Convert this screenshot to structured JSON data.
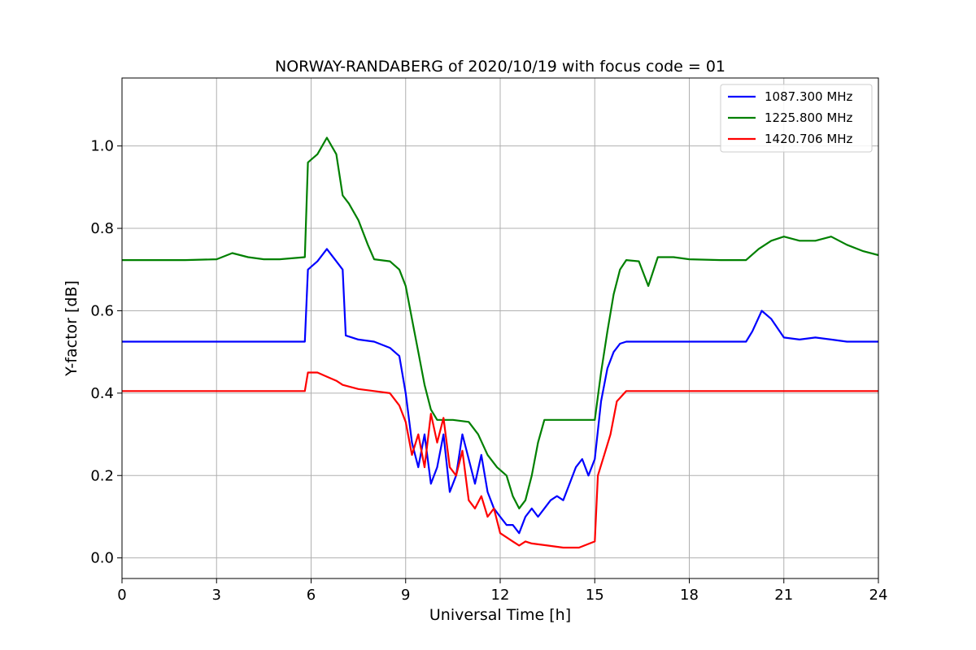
{
  "chart_data": {
    "type": "line",
    "title": "NORWAY-RANDABERG of 2020/10/19 with focus code = 01",
    "xlabel": "Universal Time [h]",
    "ylabel": "Y-factor [dB]",
    "xlim": [
      0,
      24
    ],
    "ylim": [
      -0.05,
      1.165
    ],
    "xticks": [
      0,
      3,
      6,
      9,
      12,
      15,
      18,
      21,
      24
    ],
    "xtick_labels": [
      "0",
      "3",
      "6",
      "9",
      "12",
      "15",
      "18",
      "21",
      "24"
    ],
    "yticks": [
      0.0,
      0.2,
      0.4,
      0.6,
      0.8,
      1.0
    ],
    "ytick_labels": [
      "0.0",
      "0.2",
      "0.4",
      "0.6",
      "0.8",
      "1.0"
    ],
    "grid": true,
    "legend_position": "top-right",
    "series": [
      {
        "name": "1087.300 MHz",
        "color": "#0000ff",
        "points": [
          [
            0.0,
            0.525
          ],
          [
            1.0,
            0.525
          ],
          [
            2.0,
            0.525
          ],
          [
            3.0,
            0.525
          ],
          [
            4.0,
            0.525
          ],
          [
            5.0,
            0.525
          ],
          [
            5.8,
            0.525
          ],
          [
            5.9,
            0.7
          ],
          [
            6.2,
            0.72
          ],
          [
            6.5,
            0.75
          ],
          [
            6.8,
            0.72
          ],
          [
            7.0,
            0.7
          ],
          [
            7.1,
            0.54
          ],
          [
            7.5,
            0.53
          ],
          [
            8.0,
            0.525
          ],
          [
            8.5,
            0.51
          ],
          [
            8.8,
            0.49
          ],
          [
            9.0,
            0.4
          ],
          [
            9.2,
            0.28
          ],
          [
            9.4,
            0.22
          ],
          [
            9.6,
            0.3
          ],
          [
            9.8,
            0.18
          ],
          [
            10.0,
            0.22
          ],
          [
            10.2,
            0.3
          ],
          [
            10.4,
            0.16
          ],
          [
            10.6,
            0.2
          ],
          [
            10.8,
            0.3
          ],
          [
            11.0,
            0.24
          ],
          [
            11.2,
            0.18
          ],
          [
            11.4,
            0.25
          ],
          [
            11.6,
            0.16
          ],
          [
            11.8,
            0.12
          ],
          [
            12.0,
            0.1
          ],
          [
            12.2,
            0.08
          ],
          [
            12.4,
            0.08
          ],
          [
            12.6,
            0.06
          ],
          [
            12.8,
            0.1
          ],
          [
            13.0,
            0.12
          ],
          [
            13.2,
            0.1
          ],
          [
            13.4,
            0.12
          ],
          [
            13.6,
            0.14
          ],
          [
            13.8,
            0.15
          ],
          [
            14.0,
            0.14
          ],
          [
            14.2,
            0.18
          ],
          [
            14.4,
            0.22
          ],
          [
            14.6,
            0.24
          ],
          [
            14.8,
            0.2
          ],
          [
            15.0,
            0.24
          ],
          [
            15.2,
            0.38
          ],
          [
            15.4,
            0.46
          ],
          [
            15.6,
            0.5
          ],
          [
            15.8,
            0.52
          ],
          [
            16.0,
            0.525
          ],
          [
            17.0,
            0.525
          ],
          [
            18.0,
            0.525
          ],
          [
            19.0,
            0.525
          ],
          [
            19.8,
            0.525
          ],
          [
            20.0,
            0.55
          ],
          [
            20.3,
            0.6
          ],
          [
            20.6,
            0.58
          ],
          [
            21.0,
            0.535
          ],
          [
            21.5,
            0.53
          ],
          [
            22.0,
            0.535
          ],
          [
            22.5,
            0.53
          ],
          [
            23.0,
            0.525
          ],
          [
            24.0,
            0.525
          ]
        ]
      },
      {
        "name": "1225.800 MHz",
        "color": "#008000",
        "points": [
          [
            0.0,
            0.723
          ],
          [
            1.0,
            0.723
          ],
          [
            2.0,
            0.723
          ],
          [
            3.0,
            0.725
          ],
          [
            3.5,
            0.74
          ],
          [
            4.0,
            0.73
          ],
          [
            4.5,
            0.725
          ],
          [
            5.0,
            0.725
          ],
          [
            5.8,
            0.73
          ],
          [
            5.9,
            0.96
          ],
          [
            6.2,
            0.98
          ],
          [
            6.5,
            1.02
          ],
          [
            6.8,
            0.98
          ],
          [
            7.0,
            0.88
          ],
          [
            7.2,
            0.86
          ],
          [
            7.5,
            0.82
          ],
          [
            7.8,
            0.76
          ],
          [
            8.0,
            0.725
          ],
          [
            8.5,
            0.72
          ],
          [
            8.8,
            0.7
          ],
          [
            9.0,
            0.66
          ],
          [
            9.2,
            0.58
          ],
          [
            9.4,
            0.5
          ],
          [
            9.6,
            0.42
          ],
          [
            9.8,
            0.36
          ],
          [
            10.0,
            0.335
          ],
          [
            10.5,
            0.335
          ],
          [
            11.0,
            0.33
          ],
          [
            11.3,
            0.3
          ],
          [
            11.6,
            0.25
          ],
          [
            11.9,
            0.22
          ],
          [
            12.2,
            0.2
          ],
          [
            12.4,
            0.15
          ],
          [
            12.6,
            0.12
          ],
          [
            12.8,
            0.14
          ],
          [
            13.0,
            0.2
          ],
          [
            13.2,
            0.28
          ],
          [
            13.4,
            0.335
          ],
          [
            14.0,
            0.335
          ],
          [
            14.5,
            0.335
          ],
          [
            15.0,
            0.335
          ],
          [
            15.2,
            0.45
          ],
          [
            15.4,
            0.55
          ],
          [
            15.6,
            0.64
          ],
          [
            15.8,
            0.7
          ],
          [
            16.0,
            0.723
          ],
          [
            16.4,
            0.72
          ],
          [
            16.7,
            0.66
          ],
          [
            17.0,
            0.73
          ],
          [
            17.5,
            0.73
          ],
          [
            18.0,
            0.725
          ],
          [
            19.0,
            0.723
          ],
          [
            19.8,
            0.723
          ],
          [
            20.2,
            0.75
          ],
          [
            20.6,
            0.77
          ],
          [
            21.0,
            0.78
          ],
          [
            21.5,
            0.77
          ],
          [
            22.0,
            0.77
          ],
          [
            22.5,
            0.78
          ],
          [
            23.0,
            0.76
          ],
          [
            23.5,
            0.745
          ],
          [
            24.0,
            0.735
          ]
        ]
      },
      {
        "name": "1420.706 MHz",
        "color": "#ff0000",
        "points": [
          [
            0.0,
            0.405
          ],
          [
            1.0,
            0.405
          ],
          [
            2.0,
            0.405
          ],
          [
            3.0,
            0.405
          ],
          [
            4.0,
            0.405
          ],
          [
            5.0,
            0.405
          ],
          [
            5.8,
            0.405
          ],
          [
            5.9,
            0.45
          ],
          [
            6.2,
            0.45
          ],
          [
            6.5,
            0.44
          ],
          [
            6.8,
            0.43
          ],
          [
            7.0,
            0.42
          ],
          [
            7.5,
            0.41
          ],
          [
            8.0,
            0.405
          ],
          [
            8.5,
            0.4
          ],
          [
            8.8,
            0.37
          ],
          [
            9.0,
            0.33
          ],
          [
            9.2,
            0.25
          ],
          [
            9.4,
            0.3
          ],
          [
            9.6,
            0.22
          ],
          [
            9.8,
            0.35
          ],
          [
            10.0,
            0.28
          ],
          [
            10.2,
            0.34
          ],
          [
            10.4,
            0.22
          ],
          [
            10.6,
            0.2
          ],
          [
            10.8,
            0.26
          ],
          [
            11.0,
            0.14
          ],
          [
            11.2,
            0.12
          ],
          [
            11.4,
            0.15
          ],
          [
            11.6,
            0.1
          ],
          [
            11.8,
            0.12
          ],
          [
            12.0,
            0.06
          ],
          [
            12.2,
            0.05
          ],
          [
            12.4,
            0.04
          ],
          [
            12.6,
            0.03
          ],
          [
            12.8,
            0.04
          ],
          [
            13.0,
            0.035
          ],
          [
            13.5,
            0.03
          ],
          [
            14.0,
            0.025
          ],
          [
            14.5,
            0.025
          ],
          [
            15.0,
            0.04
          ],
          [
            15.1,
            0.2
          ],
          [
            15.3,
            0.25
          ],
          [
            15.5,
            0.3
          ],
          [
            15.7,
            0.38
          ],
          [
            16.0,
            0.405
          ],
          [
            17.0,
            0.405
          ],
          [
            18.0,
            0.405
          ],
          [
            19.0,
            0.405
          ],
          [
            20.0,
            0.405
          ],
          [
            21.0,
            0.405
          ],
          [
            22.0,
            0.405
          ],
          [
            23.0,
            0.405
          ],
          [
            24.0,
            0.405
          ]
        ]
      }
    ]
  }
}
